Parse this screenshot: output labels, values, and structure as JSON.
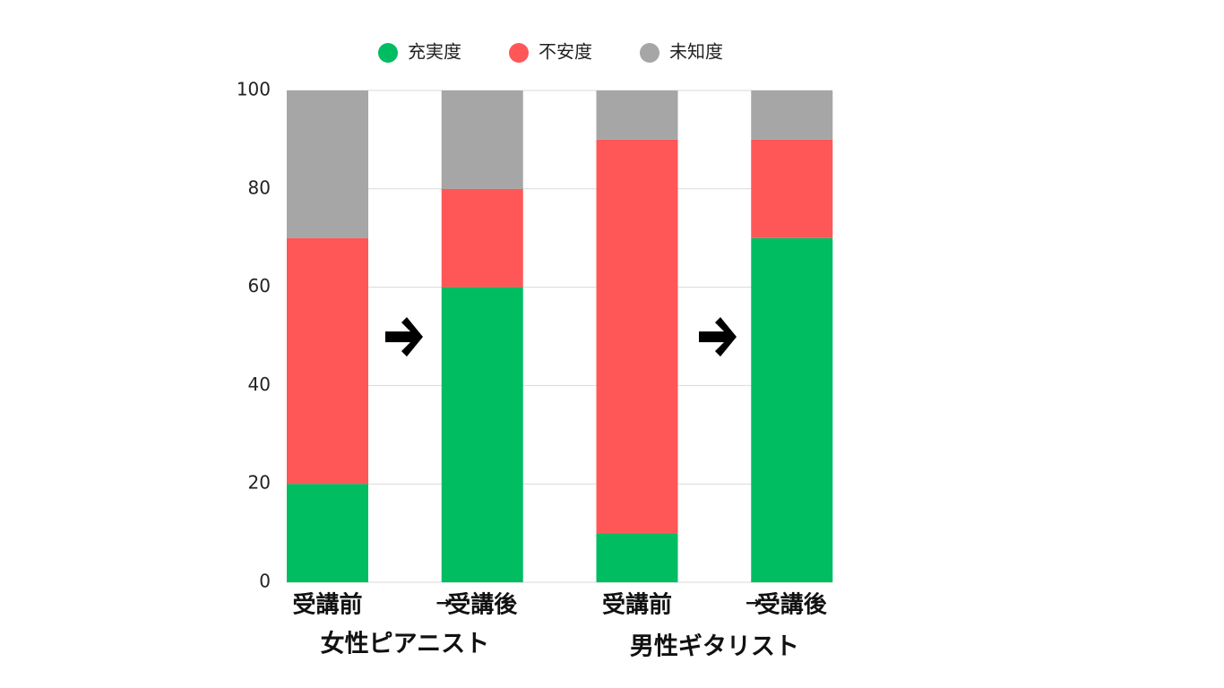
{
  "chart_data": {
    "type": "stacked_bar",
    "categories": [
      "受講前",
      "受講後",
      "受講前",
      "受講後"
    ],
    "group_labels": [
      "女性ピアニスト",
      "男性ギタリスト"
    ],
    "annotations": [
      "→",
      "→"
    ],
    "series": [
      {
        "name": "充実度",
        "color": "#00bd62",
        "values": [
          20,
          60,
          10,
          70
        ]
      },
      {
        "name": "不安度",
        "color": "#ff5757",
        "values": [
          50,
          20,
          80,
          20
        ]
      },
      {
        "name": "未知度",
        "color": "#a6a6a6",
        "values": [
          30,
          20,
          10,
          10
        ]
      }
    ],
    "ylim": [
      0,
      100
    ],
    "yticks": [
      0,
      20,
      40,
      60,
      80,
      100
    ],
    "grid": true
  }
}
